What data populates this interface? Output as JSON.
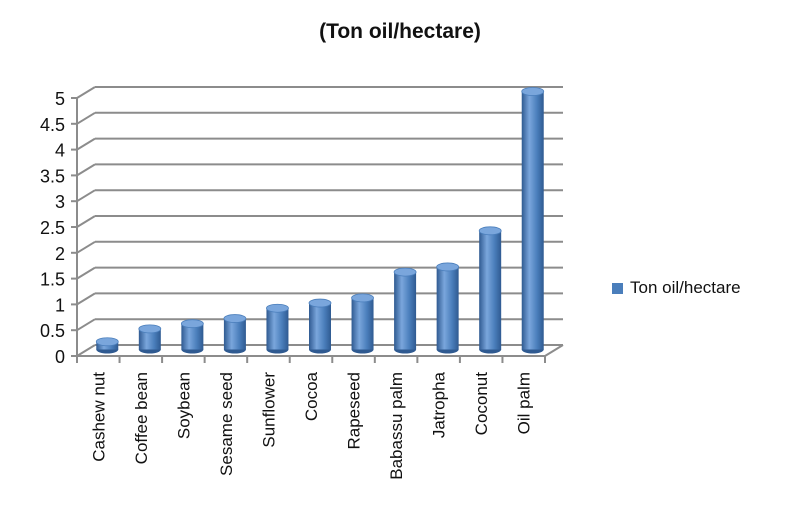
{
  "chart_data": {
    "type": "bar",
    "style": "3d-cylinder",
    "title": "(Ton oil/hectare)",
    "xlabel": "",
    "ylabel": "",
    "ylim": [
      0,
      5
    ],
    "yticks": [
      "0",
      "0.5",
      "1",
      "1.5",
      "2",
      "2.5",
      "3",
      "3.5",
      "4",
      "4.5",
      "5"
    ],
    "grid": true,
    "legend_position": "right",
    "categories": [
      "Cashew nut",
      "Coffee bean",
      "Soybean",
      "Sesame seed",
      "Sunflower",
      "Cocoa",
      "Rapeseed",
      "Babassu palm",
      "Jatropha",
      "Coconut",
      "Oil palm"
    ],
    "series": [
      {
        "name": "Ton oil/hectare",
        "color": "#4a7ebb",
        "values": [
          0.15,
          0.4,
          0.5,
          0.6,
          0.8,
          0.9,
          1.0,
          1.5,
          1.6,
          2.3,
          5.0
        ]
      }
    ]
  },
  "colors": {
    "bar": "#4a7ebb",
    "bar_dark": "#2f5a91",
    "bar_light": "#7aa6dc",
    "grid": "#8c8c8c"
  }
}
